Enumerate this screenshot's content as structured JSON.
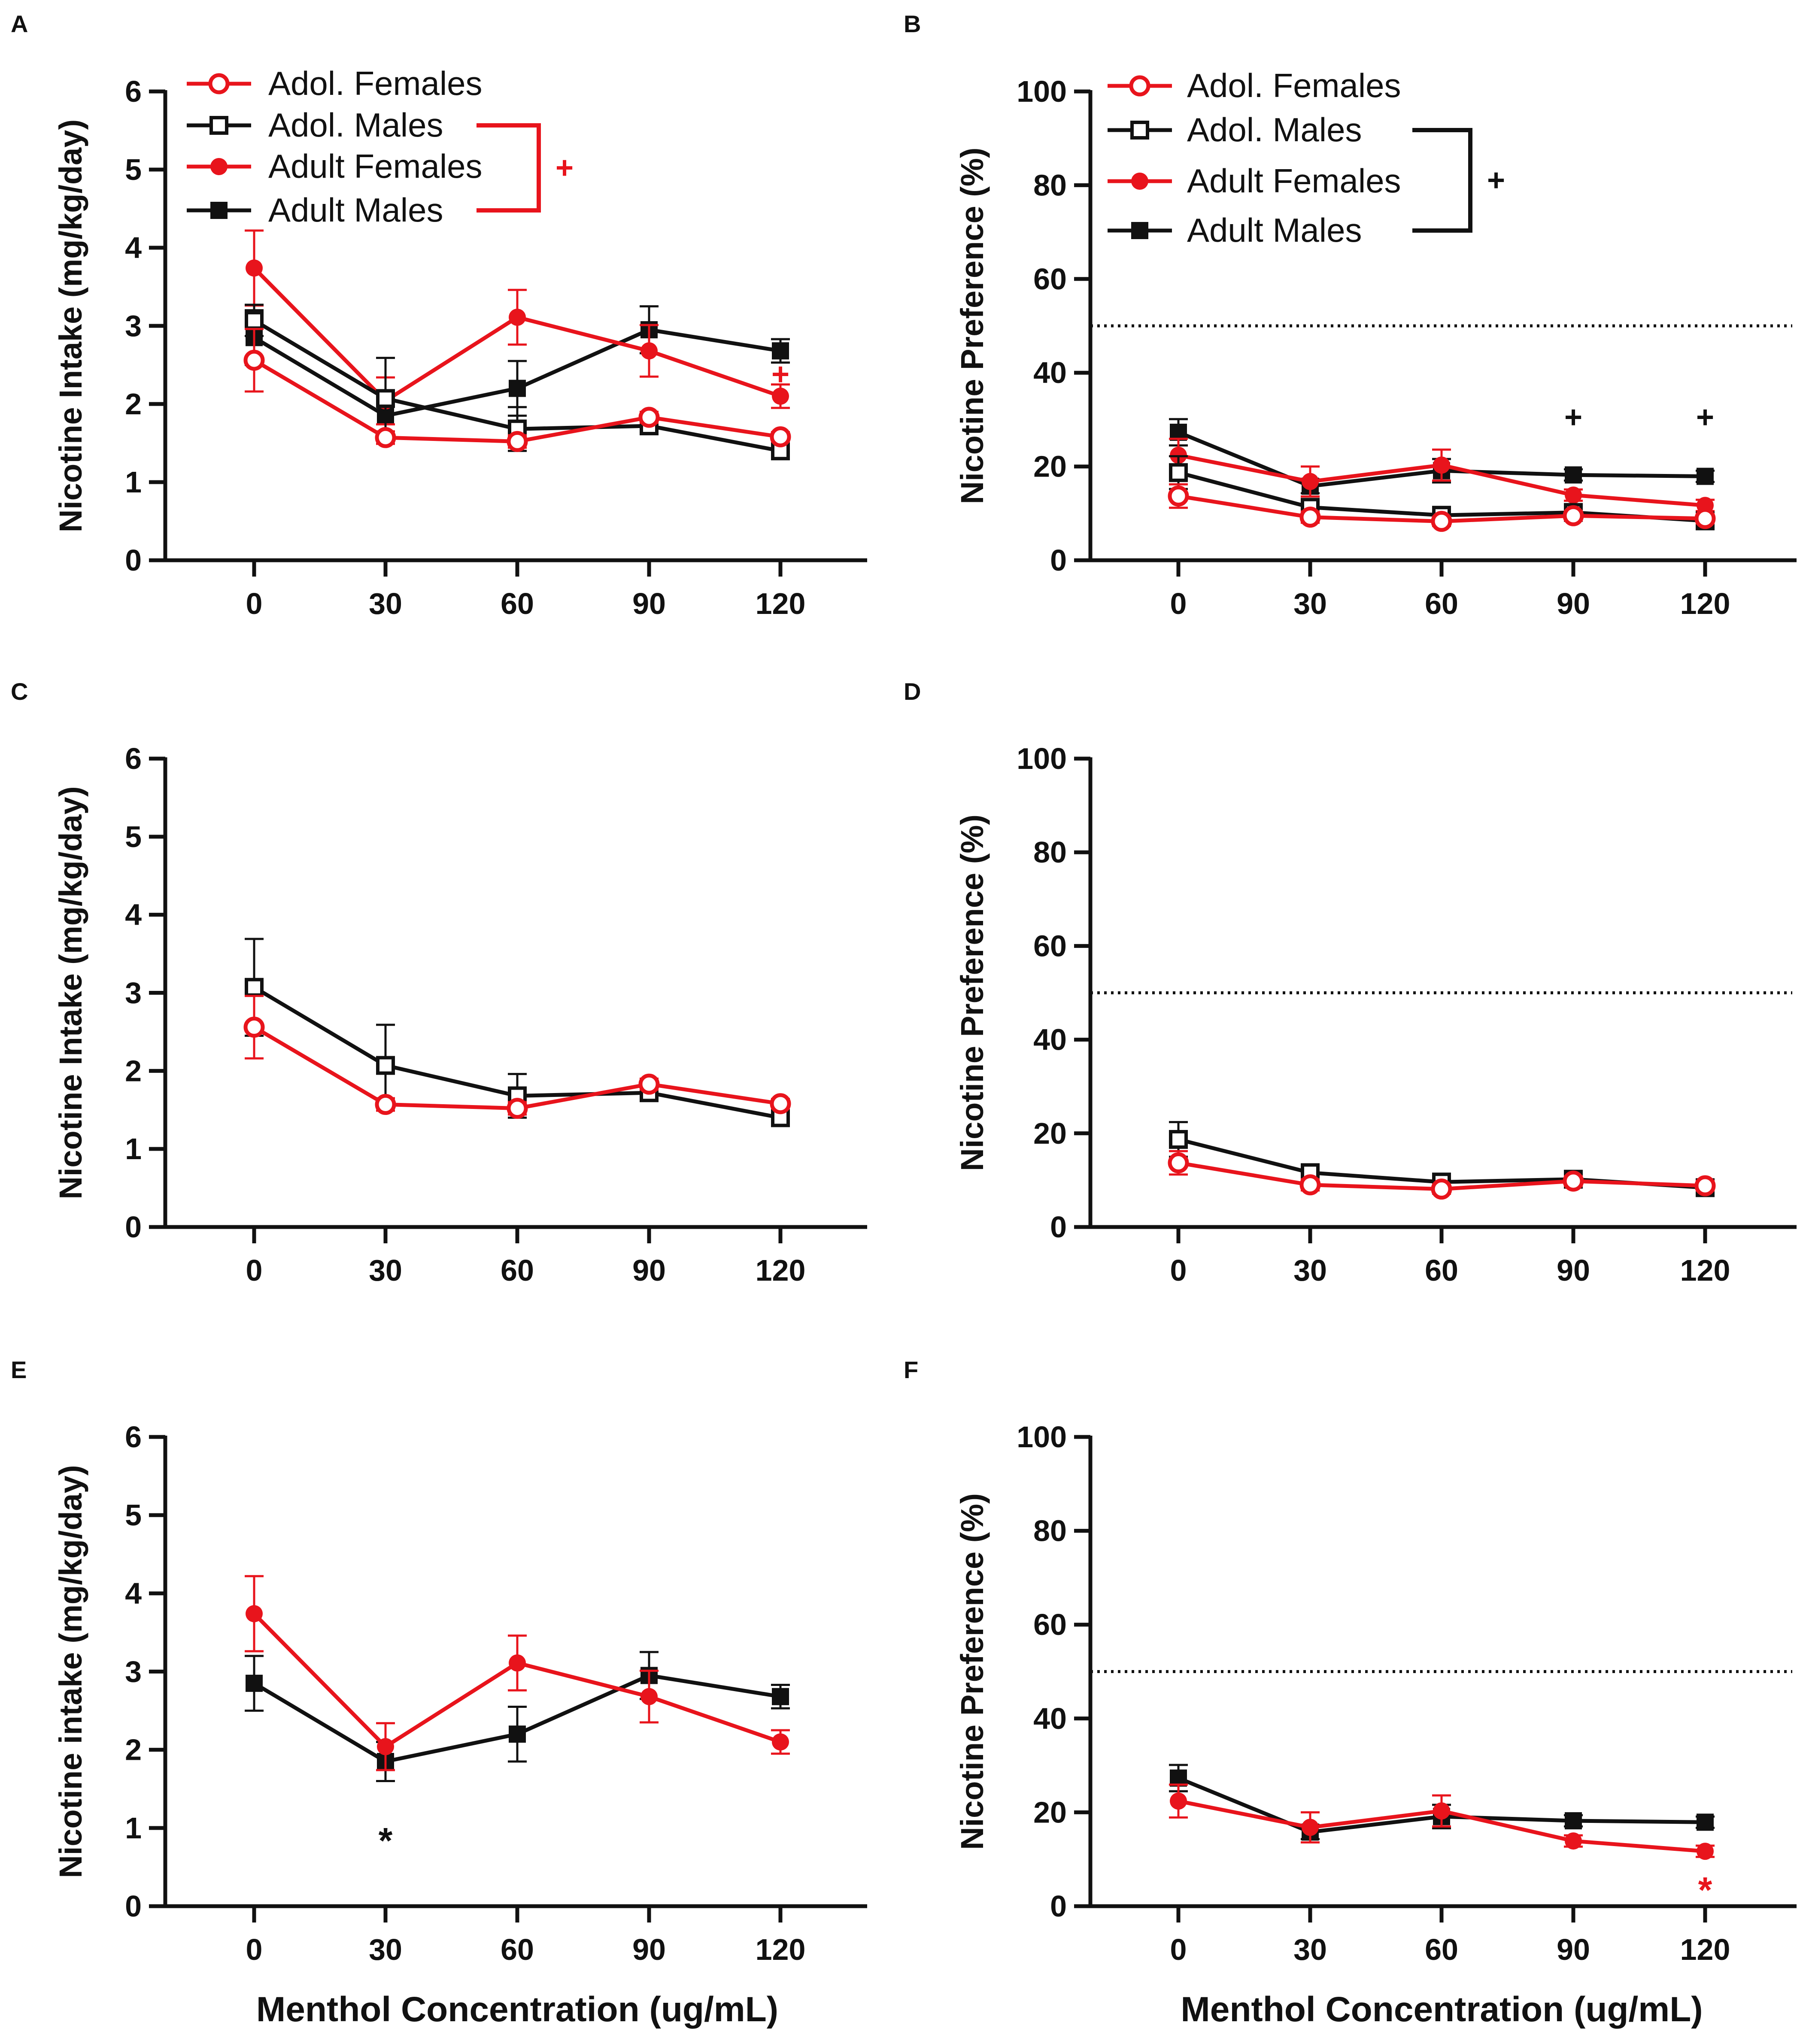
{
  "colors": {
    "red": "#e8141c",
    "black": "#111111",
    "white": "#ffffff"
  },
  "x_axis_title": "Menthol Concentration (ug/mL)",
  "chart_data": [
    {
      "panel": "A",
      "type": "line",
      "ylabel": "Nicotine Intake (mg/kg/day)",
      "x": [
        0,
        30,
        60,
        90,
        120
      ],
      "xticks": [
        "0",
        "30",
        "60",
        "90",
        "120"
      ],
      "ylim": [
        0,
        6
      ],
      "yticks": [
        0,
        1,
        2,
        3,
        4,
        5,
        6
      ],
      "legend": {
        "position": "top-left",
        "entries": [
          "Adol. Females",
          "Adol. Males",
          "Adult Females",
          "Adult Males"
        ],
        "bracket_text": "+",
        "bracket_color": "red"
      },
      "series": [
        {
          "name": "Adult Males",
          "color": "black",
          "marker": "square",
          "filled": true,
          "values": [
            2.85,
            1.85,
            2.2,
            2.95,
            2.68
          ],
          "err": [
            0.35,
            0.25,
            0.35,
            0.3,
            0.15
          ]
        },
        {
          "name": "Adult Females",
          "color": "red",
          "marker": "circle",
          "filled": true,
          "values": [
            3.74,
            2.04,
            3.11,
            2.68,
            2.1
          ],
          "err": [
            0.48,
            0.3,
            0.35,
            0.33,
            0.15
          ]
        },
        {
          "name": "Adol. Males",
          "color": "black",
          "marker": "square",
          "filled": false,
          "values": [
            3.07,
            2.07,
            1.68,
            1.72,
            1.4
          ],
          "err": [
            0.2,
            0.52,
            0.28,
            0.1,
            0.08
          ]
        },
        {
          "name": "Adol. Females",
          "color": "red",
          "marker": "circle",
          "filled": false,
          "values": [
            2.56,
            1.57,
            1.52,
            1.83,
            1.58
          ],
          "err": [
            0.4,
            0.08,
            0.08,
            0.07,
            0.06
          ]
        }
      ],
      "annotations": [
        {
          "text": "+",
          "x": 120,
          "y": 2.38,
          "color": "red"
        }
      ]
    },
    {
      "panel": "B",
      "type": "line",
      "ylabel": "Nicotine Preference (%)",
      "x": [
        0,
        30,
        60,
        90,
        120
      ],
      "xticks": [
        "0",
        "30",
        "60",
        "90",
        "120"
      ],
      "ylim": [
        0,
        100
      ],
      "yticks": [
        0,
        20,
        40,
        60,
        80,
        100
      ],
      "reference_line": 50,
      "legend": {
        "position": "top-left",
        "entries": [
          "Adol. Females",
          "Adol. Males",
          "Adult Females",
          "Adult Males"
        ],
        "bracket_text": "+",
        "bracket_color": "black"
      },
      "series": [
        {
          "name": "Adult Males",
          "color": "black",
          "marker": "square",
          "filled": true,
          "values": [
            27.3,
            15.8,
            19.1,
            18.2,
            17.9
          ],
          "err": [
            2.8,
            1.5,
            2.5,
            1.2,
            1.2
          ]
        },
        {
          "name": "Adult Females",
          "color": "red",
          "marker": "circle",
          "filled": true,
          "values": [
            22.4,
            16.8,
            20.3,
            13.9,
            11.7
          ],
          "err": [
            3.5,
            3.2,
            3.3,
            1.2,
            1.2
          ]
        },
        {
          "name": "Adol. Males",
          "color": "black",
          "marker": "square",
          "filled": false,
          "values": [
            18.7,
            11.3,
            9.6,
            10.2,
            8.4
          ],
          "err": [
            3.5,
            1.2,
            1.0,
            1.0,
            1.0
          ]
        },
        {
          "name": "Adol. Females",
          "color": "red",
          "marker": "circle",
          "filled": false,
          "values": [
            13.7,
            9.2,
            8.3,
            9.5,
            8.9
          ],
          "err": [
            2.5,
            1.2,
            1.0,
            1.0,
            1.0
          ]
        }
      ],
      "annotations": [
        {
          "text": "+",
          "x": 90,
          "y": 30.5,
          "color": "black"
        },
        {
          "text": "+",
          "x": 120,
          "y": 30.5,
          "color": "black"
        }
      ]
    },
    {
      "panel": "C",
      "type": "line",
      "ylabel": "Nicotine Intake (mg/kg/day)",
      "x": [
        0,
        30,
        60,
        90,
        120
      ],
      "xticks": [
        "0",
        "30",
        "60",
        "90",
        "120"
      ],
      "ylim": [
        0,
        6
      ],
      "yticks": [
        0,
        1,
        2,
        3,
        4,
        5,
        6
      ],
      "series": [
        {
          "name": "Adol. Males",
          "color": "black",
          "marker": "square",
          "filled": false,
          "values": [
            3.07,
            2.07,
            1.68,
            1.72,
            1.4
          ],
          "err": [
            0.62,
            0.52,
            0.28,
            0.1,
            0.08
          ]
        },
        {
          "name": "Adol. Females",
          "color": "red",
          "marker": "circle",
          "filled": false,
          "values": [
            2.56,
            1.57,
            1.52,
            1.83,
            1.58
          ],
          "err": [
            0.4,
            0.08,
            0.08,
            0.07,
            0.06
          ]
        }
      ],
      "annotations": []
    },
    {
      "panel": "D",
      "type": "line",
      "ylabel": "Nicotine Preference (%)",
      "x": [
        0,
        30,
        60,
        90,
        120
      ],
      "xticks": [
        "0",
        "30",
        "60",
        "90",
        "120"
      ],
      "ylim": [
        0,
        100
      ],
      "yticks": [
        0,
        20,
        40,
        60,
        80,
        100
      ],
      "reference_line": 50,
      "series": [
        {
          "name": "Adol. Males",
          "color": "black",
          "marker": "square",
          "filled": false,
          "values": [
            18.7,
            11.6,
            9.6,
            10.2,
            8.4
          ],
          "err": [
            3.7,
            1.2,
            1.0,
            1.0,
            1.0
          ]
        },
        {
          "name": "Adol. Females",
          "color": "red",
          "marker": "circle",
          "filled": false,
          "values": [
            13.7,
            9.0,
            8.1,
            9.8,
            8.8
          ],
          "err": [
            2.5,
            1.2,
            1.0,
            1.0,
            1.0
          ]
        }
      ],
      "annotations": []
    },
    {
      "panel": "E",
      "type": "line",
      "ylabel": "Nicotine intake (mg/kg/day)",
      "x": [
        0,
        30,
        60,
        90,
        120
      ],
      "xticks": [
        "0",
        "30",
        "60",
        "90",
        "120"
      ],
      "ylim": [
        0,
        6
      ],
      "yticks": [
        0,
        1,
        2,
        3,
        4,
        5,
        6
      ],
      "series": [
        {
          "name": "Adult Males",
          "color": "black",
          "marker": "square",
          "filled": true,
          "values": [
            2.85,
            1.85,
            2.2,
            2.95,
            2.68
          ],
          "err": [
            0.35,
            0.25,
            0.35,
            0.3,
            0.15
          ]
        },
        {
          "name": "Adult Females",
          "color": "red",
          "marker": "circle",
          "filled": true,
          "values": [
            3.74,
            2.04,
            3.11,
            2.68,
            2.1
          ],
          "err": [
            0.48,
            0.3,
            0.35,
            0.33,
            0.15
          ]
        }
      ],
      "annotations": [
        {
          "text": "*",
          "x": 30,
          "y": 0.9,
          "color": "black"
        }
      ]
    },
    {
      "panel": "F",
      "type": "line",
      "ylabel": "Nicotine Preference (%)",
      "x": [
        0,
        30,
        60,
        90,
        120
      ],
      "xticks": [
        "0",
        "30",
        "60",
        "90",
        "120"
      ],
      "ylim": [
        0,
        100
      ],
      "yticks": [
        0,
        20,
        40,
        60,
        80,
        100
      ],
      "reference_line": 50,
      "series": [
        {
          "name": "Adult Males",
          "color": "black",
          "marker": "square",
          "filled": true,
          "values": [
            27.3,
            15.8,
            19.1,
            18.2,
            17.9
          ],
          "err": [
            2.8,
            1.5,
            2.5,
            1.2,
            1.2
          ]
        },
        {
          "name": "Adult Females",
          "color": "red",
          "marker": "circle",
          "filled": true,
          "values": [
            22.4,
            16.8,
            20.3,
            13.9,
            11.7
          ],
          "err": [
            3.5,
            3.2,
            3.3,
            1.2,
            1.2
          ]
        }
      ],
      "annotations": [
        {
          "text": "*",
          "x": 120,
          "y": 4.5,
          "color": "red"
        }
      ]
    }
  ]
}
